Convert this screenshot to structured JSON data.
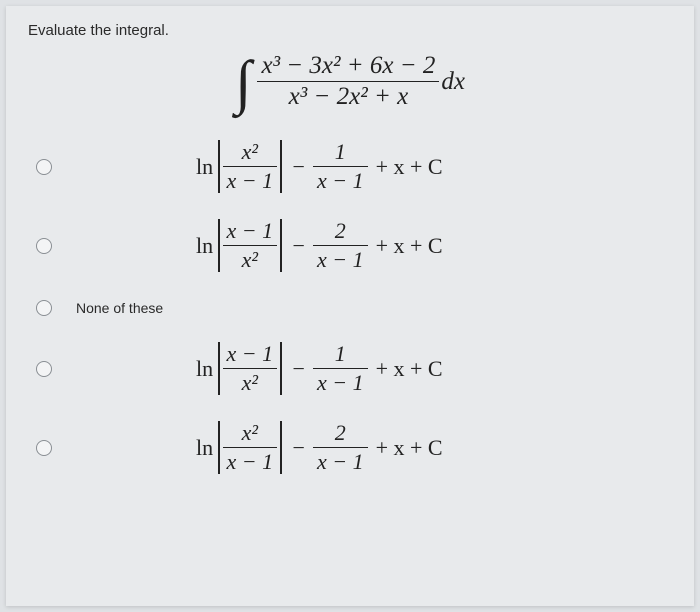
{
  "prompt": "Evaluate the integral.",
  "integral": {
    "numerator": "x³ − 3x² + 6x − 2",
    "denominator": "x³ − 2x² + x",
    "dx": "dx"
  },
  "options": [
    {
      "type": "math",
      "ln_arg_num": "x²",
      "ln_arg_den": "x − 1",
      "mid_num": "1",
      "mid_den": "x − 1",
      "tail": "+ x + C"
    },
    {
      "type": "math",
      "ln_arg_num": "x − 1",
      "ln_arg_den": "x²",
      "mid_num": "2",
      "mid_den": "x − 1",
      "tail": "+ x + C"
    },
    {
      "type": "text",
      "label": "None of these"
    },
    {
      "type": "math",
      "ln_arg_num": "x − 1",
      "ln_arg_den": "x²",
      "mid_num": "1",
      "mid_den": "x − 1",
      "tail": "+ x + C"
    },
    {
      "type": "math",
      "ln_arg_num": "x²",
      "ln_arg_den": "x − 1",
      "mid_num": "2",
      "mid_den": "x − 1",
      "tail": "+ x + C"
    }
  ],
  "labels": {
    "ln": "ln",
    "minus": "−"
  },
  "colors": {
    "page_bg": "#dfe2e5",
    "paper_bg": "#e8eaec",
    "text": "#222222",
    "radio_border": "#8a8f94"
  }
}
